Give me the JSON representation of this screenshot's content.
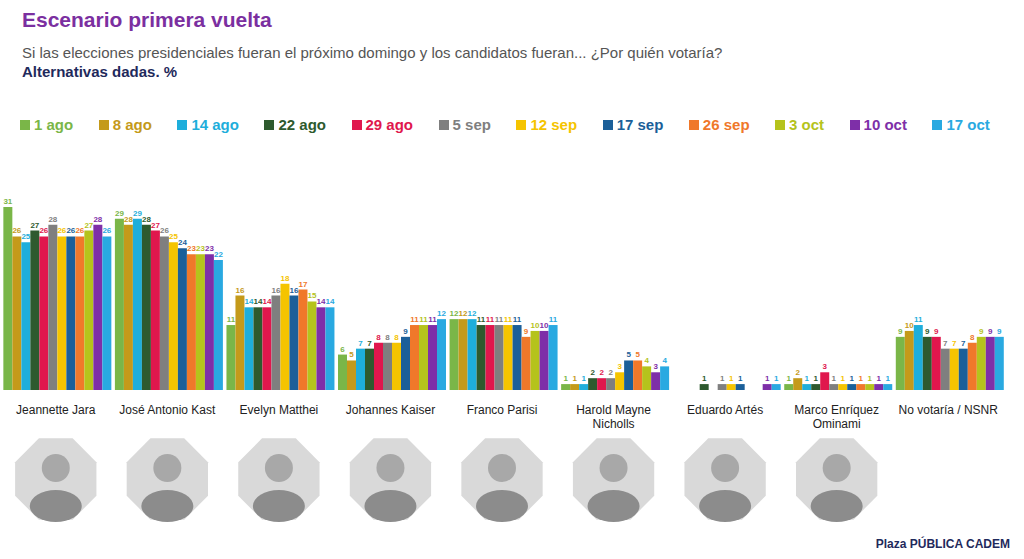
{
  "chart_data": {
    "type": "bar",
    "title": "Escenario primera vuelta",
    "subtitle": "Si las elecciones presidenciales fueran el próximo domingo y los candidatos fueran... ¿Por quién votaría?",
    "notes": [
      "Alternativas dadas. %",
      "Plaza PÚBLICA CADEM"
    ],
    "categories": [
      "Jeannette Jara",
      "José Antonio Kast",
      "Evelyn Matthei",
      "Johannes Kaiser",
      "Franco Parisi",
      "Harold Mayne Nicholls",
      "Eduardo Artés",
      "Marco Enríquez Ominami",
      "No votaría / NSNR"
    ],
    "series": [
      {
        "name": "1 ago",
        "color": "#7AB648",
        "values": [
          31,
          29,
          11,
          6,
          12,
          1,
          0,
          1,
          9
        ]
      },
      {
        "name": "8 ago",
        "color": "#C49A1A",
        "values": [
          26,
          28,
          16,
          5,
          12,
          1,
          0,
          2,
          10
        ]
      },
      {
        "name": "14 ago",
        "color": "#1EAEDB",
        "values": [
          25,
          29,
          14,
          7,
          12,
          1,
          0,
          1,
          11
        ]
      },
      {
        "name": "22 ago",
        "color": "#2E5A2E",
        "values": [
          27,
          28,
          14,
          7,
          11,
          2,
          1,
          1,
          9
        ]
      },
      {
        "name": "29 ago",
        "color": "#E0174D",
        "values": [
          26,
          27,
          14,
          8,
          11,
          2,
          0,
          3,
          9
        ]
      },
      {
        "name": "5 sep",
        "color": "#7F7F7F",
        "values": [
          28,
          26,
          16,
          8,
          11,
          2,
          1,
          1,
          7
        ]
      },
      {
        "name": "12 sep",
        "color": "#F5C400",
        "values": [
          26,
          25,
          18,
          8,
          11,
          3,
          1,
          1,
          7
        ]
      },
      {
        "name": "17 sep",
        "color": "#1B5F99",
        "values": [
          26,
          24,
          16,
          9,
          11,
          5,
          1,
          1,
          7
        ]
      },
      {
        "name": "26 sep",
        "color": "#F0782A",
        "values": [
          26,
          23,
          17,
          11,
          9,
          5,
          0,
          1,
          8
        ]
      },
      {
        "name": "3 oct",
        "color": "#B5C31C",
        "values": [
          27,
          23,
          15,
          11,
          10,
          4,
          0,
          1,
          9
        ]
      },
      {
        "name": "10 oct",
        "color": "#7E2FA8",
        "values": [
          28,
          23,
          14,
          11,
          10,
          3,
          1,
          1,
          9
        ]
      },
      {
        "name": "17 oct",
        "color": "#29A9E1",
        "values": [
          26,
          22,
          14,
          12,
          11,
          4,
          1,
          1,
          9
        ]
      }
    ],
    "ylim": [
      0,
      32
    ],
    "tick_labels": "x",
    "grid": false,
    "legend": "top",
    "data_labels": true
  }
}
